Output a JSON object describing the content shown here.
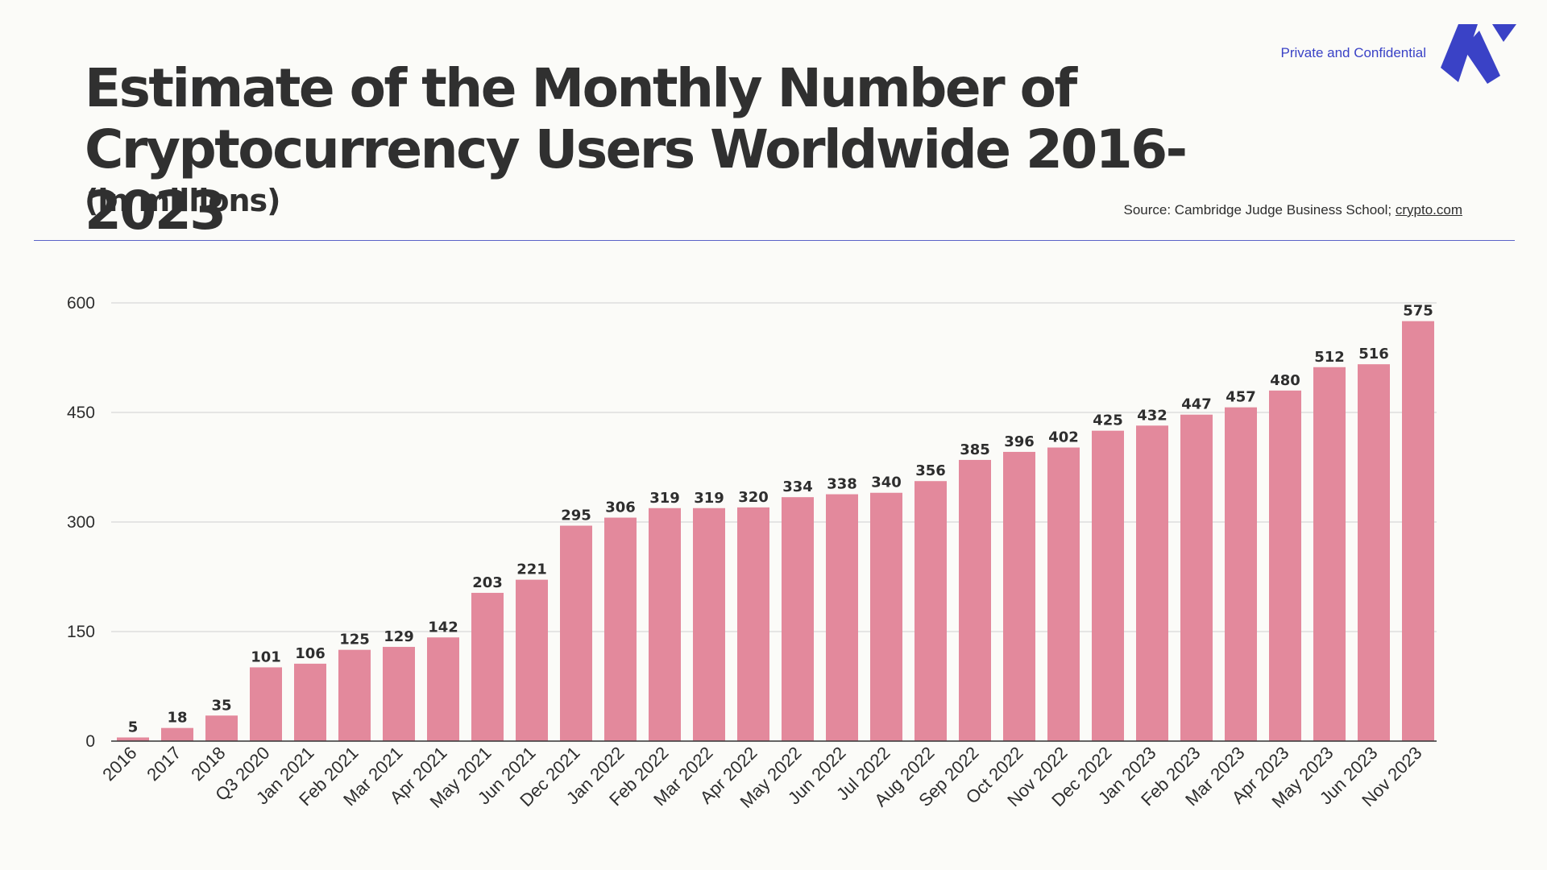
{
  "header": {
    "title_line1": "Estimate of the Monthly Number of",
    "title_line2": "Cryptocurrency Users Worldwide 2016-2023",
    "subtitle": "(in millions)",
    "confidential": "Private and Confidential",
    "source_prefix": "Source: Cambridge Judge Business School; ",
    "source_link": "crypto.com"
  },
  "colors": {
    "bar": "#e3899c",
    "accent": "#3a42c6",
    "grid": "#cfcfcf",
    "text": "#2e2e2e"
  },
  "chart_data": {
    "type": "bar",
    "title": "Estimate of the Monthly Number of Cryptocurrency Users Worldwide 2016-2023",
    "subtitle": "(in millions)",
    "xlabel": "",
    "ylabel": "",
    "ylim": [
      0,
      600
    ],
    "yticks": [
      0,
      150,
      300,
      450,
      600
    ],
    "grid": true,
    "categories": [
      "2016",
      "2017",
      "2018",
      "Q3 2020",
      "Jan 2021",
      "Feb 2021",
      "Mar 2021",
      "Apr 2021",
      "May 2021",
      "Jun 2021",
      "Dec 2021",
      "Jan 2022",
      "Feb 2022",
      "Mar 2022",
      "Apr 2022",
      "May 2022",
      "Jun 2022",
      "Jul 2022",
      "Aug 2022",
      "Sep 2022",
      "Oct 2022",
      "Nov 2022",
      "Dec 2022",
      "Jan 2023",
      "Feb 2023",
      "Mar 2023",
      "Apr 2023",
      "May 2023",
      "Jun 2023",
      "Nov 2023"
    ],
    "values": [
      5,
      18,
      35,
      101,
      106,
      125,
      129,
      142,
      203,
      221,
      295,
      306,
      319,
      319,
      320,
      334,
      338,
      340,
      356,
      385,
      396,
      402,
      425,
      432,
      447,
      457,
      480,
      512,
      516,
      575
    ]
  }
}
